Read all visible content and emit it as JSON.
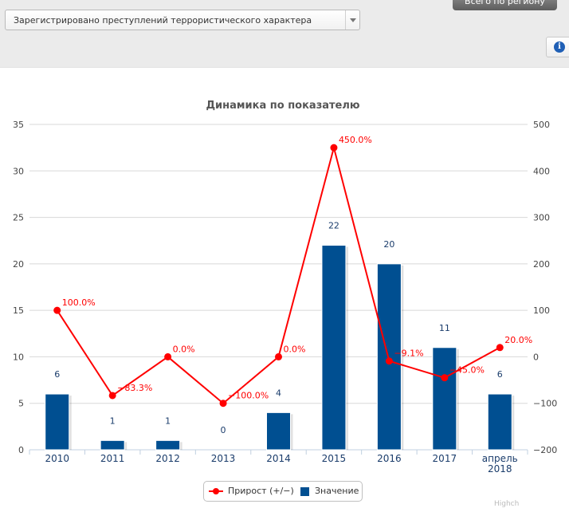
{
  "filter": {
    "indicator": "Зарегистрировано преступлений террористического характера",
    "region_tab": "Всего по региону"
  },
  "footer": {
    "partial_text": "Highch"
  },
  "chart_data": {
    "type": "bar+line",
    "title": "Динамика по показателю",
    "categories": [
      "2010",
      "2011",
      "2012",
      "2013",
      "2014",
      "2015",
      "2016",
      "2017",
      "апрель\n2018"
    ],
    "series": [
      {
        "name": "Значение",
        "type": "bar",
        "axis": "left",
        "color": "#004f91",
        "values": [
          6,
          1,
          1,
          0,
          4,
          22,
          20,
          11,
          6
        ],
        "labels": [
          "6",
          "1",
          "1",
          "0",
          "4",
          "22",
          "20",
          "11",
          "6"
        ]
      },
      {
        "name": "Прирост (+/−)",
        "type": "line",
        "axis": "right",
        "color": "#ff0000",
        "values": [
          100,
          -83.3,
          0,
          -100,
          0,
          450,
          -9.1,
          -45,
          20
        ],
        "labels": [
          "100.0%",
          "−83.3%",
          "0.0%",
          "−100.0%",
          "0.0%",
          "450.0%",
          "−9.1%",
          "−45.0%",
          "20.0%"
        ]
      }
    ],
    "y_left": {
      "min": 0,
      "max": 35,
      "ticks": [
        "0",
        "5",
        "10",
        "15",
        "20",
        "25",
        "30",
        "35"
      ]
    },
    "y_right": {
      "min": -200,
      "max": 500,
      "ticks": [
        "−200",
        "−100",
        "0",
        "100",
        "200",
        "300",
        "400",
        "500"
      ]
    },
    "grid": true,
    "legend_position": "bottom-center"
  }
}
